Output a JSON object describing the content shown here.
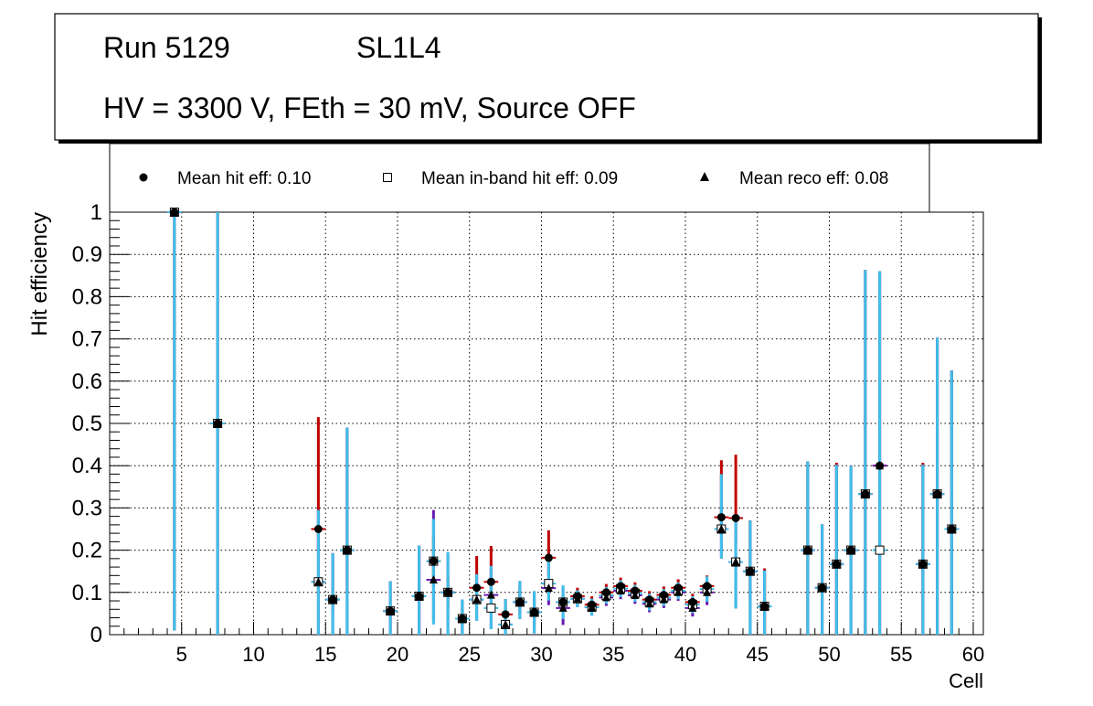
{
  "chart_data": {
    "type": "scatter",
    "title_line1_left": "Run 5129",
    "title_line1_right": "SL1L4",
    "title_line2": "HV = 3300 V, FEth = 30 mV, Source OFF",
    "xlabel": "Cell",
    "ylabel": "Hit efficiency",
    "xlim": [
      0,
      60.7
    ],
    "ylim": [
      0,
      1
    ],
    "x_ticks": [
      5,
      10,
      15,
      20,
      25,
      30,
      35,
      40,
      45,
      50,
      55,
      60
    ],
    "y_ticks": [
      0,
      0.1,
      0.2,
      0.3,
      0.4,
      0.5,
      0.6,
      0.7,
      0.8,
      0.9,
      1
    ],
    "y_tick_labels": [
      "0",
      "0.1",
      "0.2",
      "0.3",
      "0.4",
      "0.5",
      "0.6",
      "0.7",
      "0.8",
      "0.9",
      "1"
    ],
    "grid": true,
    "legend": {
      "position": "top",
      "entries": [
        {
          "label": "Mean hit  eff: 0.10",
          "marker": "circle"
        },
        {
          "label": "Mean in-band hit eff: 0.09",
          "marker": "open-square"
        },
        {
          "label": "Mean reco eff: 0.08",
          "marker": "triangle"
        }
      ]
    },
    "colors": {
      "hit_err": "#c00000",
      "inband_err": "#40c0e8",
      "reco_err": "#6a1ab0",
      "grid": "#000000"
    },
    "series": [
      {
        "name": "Mean hit eff",
        "marker": "circle",
        "x": [
          4.5,
          7.5,
          14.5,
          15.5,
          16.5,
          19.5,
          21.5,
          22.5,
          23.5,
          24.5,
          25.5,
          26.5,
          27.5,
          28.5,
          29.5,
          30.5,
          31.5,
          32.5,
          33.5,
          34.5,
          35.5,
          36.5,
          37.5,
          38.5,
          39.5,
          40.5,
          41.5,
          42.5,
          43.5,
          44.5,
          45.5,
          48.5,
          49.5,
          50.5,
          51.5,
          52.5,
          53.5,
          56.5,
          57.5,
          58.5
        ],
        "y": [
          1.0,
          0.5,
          0.25,
          0.083,
          0.2,
          0.056,
          0.091,
          0.174,
          0.1,
          0.038,
          0.111,
          0.125,
          0.048,
          0.077,
          0.053,
          0.182,
          0.077,
          0.091,
          0.071,
          0.1,
          0.115,
          0.104,
          0.083,
          0.094,
          0.111,
          0.077,
          0.115,
          0.278,
          0.276,
          0.15,
          0.067,
          0.2,
          0.111,
          0.167,
          0.2,
          0.333,
          0.4,
          0.167,
          0.333,
          0.25
        ],
        "err_low": [
          0.99,
          0.5,
          0.05,
          0.03,
          0.1,
          0.05,
          0.09,
          0.06,
          0.04,
          0.03,
          0.04,
          0.04,
          0.03,
          0.03,
          0.03,
          0.04,
          0.02,
          0.02,
          0.02,
          0.02,
          0.02,
          0.02,
          0.02,
          0.02,
          0.02,
          0.02,
          0.03,
          0.04,
          0.06,
          0.07,
          0.07,
          0.2,
          0.11,
          0.17,
          0.2,
          0.33,
          0.4,
          0.17,
          0.33,
          0.25
        ],
        "err_high": [
          0.0,
          0.5,
          0.265,
          0.11,
          0.29,
          0.07,
          0.12,
          0.06,
          0.04,
          0.03,
          0.075,
          0.085,
          0.03,
          0.04,
          0.03,
          0.065,
          0.02,
          0.02,
          0.02,
          0.02,
          0.02,
          0.02,
          0.02,
          0.02,
          0.02,
          0.02,
          0.025,
          0.135,
          0.15,
          0.12,
          0.09,
          0.21,
          0.15,
          0.24,
          0.2,
          0.53,
          0.46,
          0.24,
          0.37,
          0.375
        ]
      },
      {
        "name": "Mean in-band hit eff",
        "marker": "open-square",
        "x": [
          4.5,
          7.5,
          14.5,
          15.5,
          16.5,
          19.5,
          21.5,
          22.5,
          23.5,
          24.5,
          25.5,
          26.5,
          27.5,
          28.5,
          29.5,
          30.5,
          31.5,
          32.5,
          33.5,
          34.5,
          35.5,
          36.5,
          37.5,
          38.5,
          39.5,
          40.5,
          41.5,
          42.5,
          43.5,
          44.5,
          45.5,
          48.5,
          49.5,
          50.5,
          51.5,
          52.5,
          53.5,
          56.5,
          57.5,
          58.5
        ],
        "y": [
          1.0,
          0.5,
          0.125,
          0.083,
          0.2,
          0.056,
          0.091,
          0.174,
          0.1,
          0.038,
          0.083,
          0.063,
          0.024,
          0.077,
          0.053,
          0.121,
          0.077,
          0.085,
          0.065,
          0.093,
          0.109,
          0.098,
          0.077,
          0.088,
          0.104,
          0.071,
          0.108,
          0.25,
          0.172,
          0.15,
          0.067,
          0.2,
          0.111,
          0.167,
          0.2,
          0.333,
          0.2,
          0.167,
          0.333,
          0.25
        ],
        "err_low": [
          0.99,
          0.5,
          0.125,
          0.083,
          0.2,
          0.056,
          0.091,
          0.15,
          0.1,
          0.038,
          0.05,
          0.05,
          0.024,
          0.04,
          0.05,
          0.04,
          0.04,
          0.02,
          0.02,
          0.02,
          0.02,
          0.02,
          0.02,
          0.02,
          0.02,
          0.02,
          0.03,
          0.07,
          0.11,
          0.15,
          0.067,
          0.2,
          0.111,
          0.167,
          0.2,
          0.333,
          0.2,
          0.167,
          0.333,
          0.25
        ],
        "err_high": [
          0.0,
          0.5,
          0.17,
          0.11,
          0.29,
          0.07,
          0.12,
          0.1,
          0.095,
          0.045,
          0.06,
          0.1,
          0.06,
          0.05,
          0.05,
          0.06,
          0.04,
          0.02,
          0.02,
          0.02,
          0.02,
          0.02,
          0.02,
          0.02,
          0.02,
          0.02,
          0.03,
          0.13,
          0.1,
          0.12,
          0.085,
          0.21,
          0.15,
          0.235,
          0.2,
          0.53,
          0.66,
          0.235,
          0.37,
          0.375
        ]
      },
      {
        "name": "Mean reco eff",
        "marker": "triangle",
        "x": [
          4.5,
          7.5,
          14.5,
          15.5,
          16.5,
          19.5,
          21.5,
          22.5,
          23.5,
          24.5,
          25.5,
          26.5,
          27.5,
          28.5,
          29.5,
          30.5,
          31.5,
          32.5,
          33.5,
          34.5,
          35.5,
          36.5,
          37.5,
          38.5,
          39.5,
          40.5,
          41.5,
          42.5,
          43.5,
          44.5,
          45.5,
          48.5,
          49.5,
          50.5,
          51.5,
          52.5,
          53.5,
          56.5,
          57.5,
          58.5
        ],
        "y": [
          1.0,
          0.5,
          0.125,
          0.083,
          0.2,
          0.056,
          0.091,
          0.13,
          0.1,
          0.038,
          0.083,
          0.094,
          0.024,
          0.077,
          0.053,
          0.11,
          0.063,
          0.085,
          0.065,
          0.088,
          0.104,
          0.093,
          0.073,
          0.083,
          0.1,
          0.063,
          0.1,
          0.25,
          0.172,
          0.15,
          0.067,
          0.2,
          0.111,
          0.167,
          0.2,
          0.333,
          0.4,
          0.167,
          0.333,
          0.25
        ],
        "err_low": [
          0.99,
          0.5,
          0.125,
          0.083,
          0.2,
          0.056,
          0.091,
          0.1,
          0.1,
          0.038,
          0.05,
          0.08,
          0.024,
          0.04,
          0.05,
          0.04,
          0.04,
          0.02,
          0.02,
          0.02,
          0.02,
          0.02,
          0.02,
          0.02,
          0.02,
          0.02,
          0.03,
          0.07,
          0.11,
          0.15,
          0.067,
          0.2,
          0.111,
          0.167,
          0.2,
          0.333,
          0.4,
          0.167,
          0.333,
          0.25
        ],
        "err_high": [
          0.0,
          0.5,
          0.17,
          0.11,
          0.29,
          0.07,
          0.12,
          0.165,
          0.095,
          0.045,
          0.06,
          0.06,
          0.06,
          0.05,
          0.05,
          0.06,
          0.05,
          0.02,
          0.02,
          0.02,
          0.02,
          0.02,
          0.02,
          0.02,
          0.02,
          0.02,
          0.03,
          0.13,
          0.1,
          0.12,
          0.085,
          0.21,
          0.15,
          0.235,
          0.2,
          0.53,
          0.46,
          0.235,
          0.37,
          0.375
        ]
      }
    ]
  }
}
